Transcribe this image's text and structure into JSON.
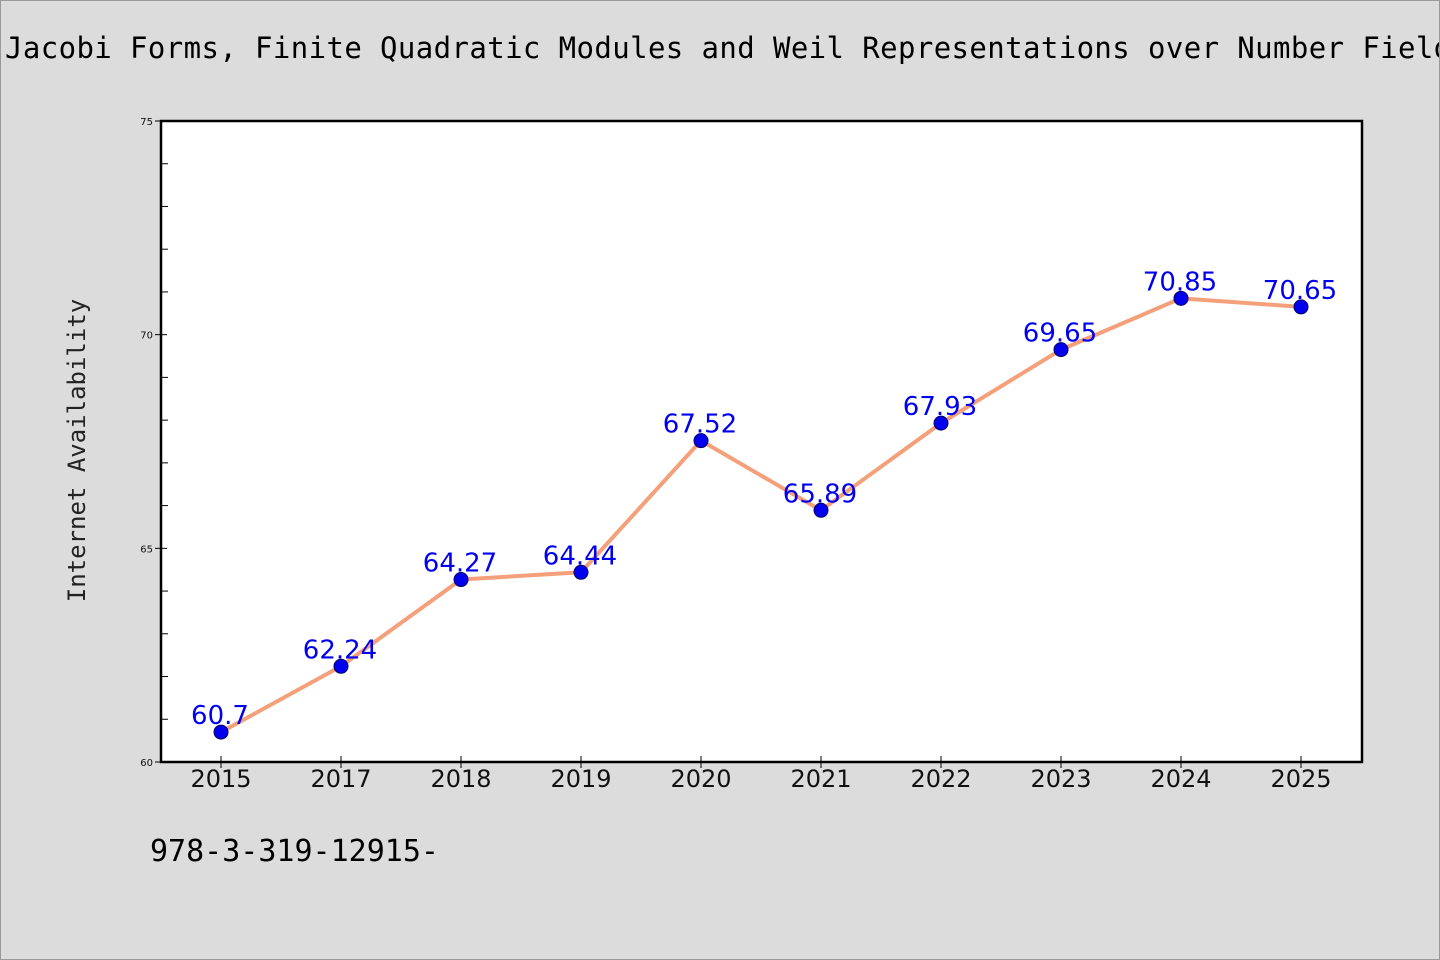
{
  "title": "Jacobi Forms, Finite Quadratic Modules and Weil Representations over Number Fields",
  "footer_text": "978-3-319-12915-",
  "colors": {
    "background": "#dcdcdc",
    "plot_background": "#ffffff",
    "line": "#f4a07a",
    "marker": "#0000ee",
    "data_label": "#0000ee",
    "axes": "#000000"
  },
  "chart_data": {
    "type": "line",
    "title": "Jacobi Forms, Finite Quadratic Modules and Weil Representations over Number Fields",
    "xlabel": "",
    "ylabel": "Internet Availability",
    "categories": [
      "2015",
      "2017",
      "2018",
      "2019",
      "2020",
      "2021",
      "2022",
      "2023",
      "2024",
      "2025"
    ],
    "series": [
      {
        "values": [
          60.7,
          62.24,
          64.27,
          64.44,
          67.52,
          65.89,
          67.93,
          69.65,
          70.85,
          70.65
        ],
        "labels": [
          "60.7",
          "62.24",
          "64.27",
          "64.44",
          "67.52",
          "65.89",
          "67.93",
          "69.65",
          "70.85",
          "70.65"
        ]
      }
    ],
    "ylim": [
      60,
      75
    ],
    "yticks": [
      60,
      65,
      70,
      75
    ],
    "ytick_labels": [
      "60",
      "65",
      "70",
      "75"
    ],
    "grid": false,
    "legend": "none"
  }
}
